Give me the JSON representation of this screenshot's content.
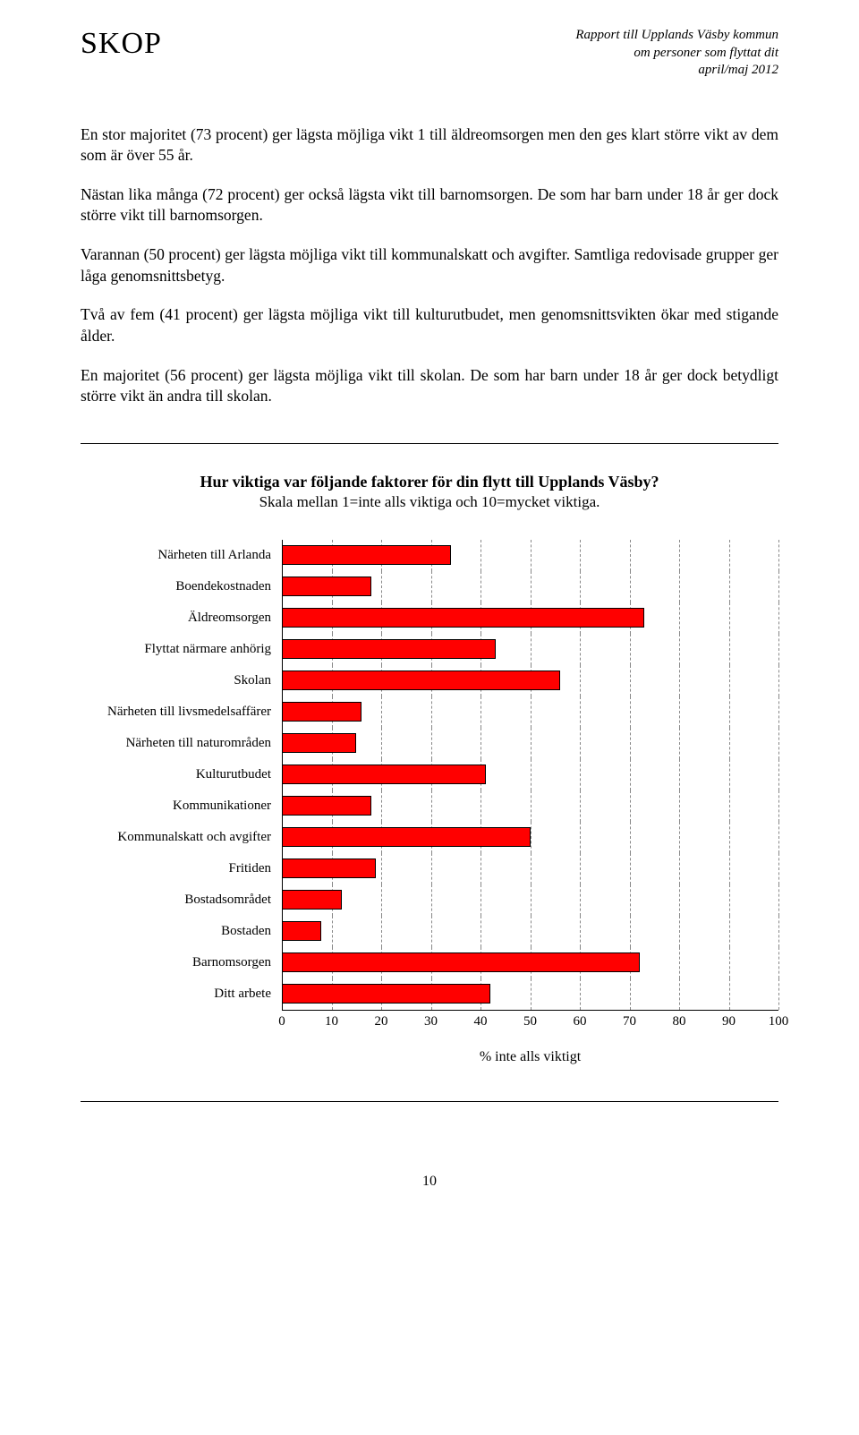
{
  "header": {
    "logo": "SKOP",
    "report_line1": "Rapport till Upplands Väsby kommun",
    "report_line2": "om  personer som flyttat dit",
    "report_line3": "april/maj 2012"
  },
  "paragraphs": {
    "p1": "En stor majoritet (73 procent) ger lägsta möjliga vikt 1 till äldreomsorgen men den ges klart större vikt av dem som är över 55 år.",
    "p2": "Nästan lika många (72 procent) ger också lägsta vikt till barnomsorgen. De som har barn under 18 år ger dock större vikt till barnomsorgen.",
    "p3": "Varannan (50 procent) ger lägsta möjliga vikt till kommunalskatt och avgifter. Samtliga redovisade grupper ger låga genomsnittsbetyg.",
    "p4": "Två av fem (41 procent) ger lägsta möjliga vikt till kulturutbudet, men genomsnittsvikten ökar med stigande ålder.",
    "p5": "En majoritet (56 procent) ger lägsta möjliga vikt till skolan. De som har barn under 18 år ger dock betydligt större vikt än andra till skolan."
  },
  "chart": {
    "type": "bar-horizontal",
    "title": "Hur viktiga var följande faktorer för din flytt till Upplands Väsby?",
    "subtitle": "Skala mellan 1=inte alls viktiga och 10=mycket viktiga.",
    "axis_label": "% inte alls viktigt",
    "xlim": [
      0,
      100
    ],
    "xtick_step": 10,
    "bar_color": "#ff0000",
    "bar_border": "#000000",
    "grid_color": "#888888",
    "background": "#ffffff",
    "label_fontsize": 15,
    "categories": [
      {
        "label": "Närheten till Arlanda",
        "value": 34
      },
      {
        "label": "Boendekostnaden",
        "value": 18
      },
      {
        "label": "Äldreomsorgen",
        "value": 73
      },
      {
        "label": "Flyttat närmare anhörig",
        "value": 43
      },
      {
        "label": "Skolan",
        "value": 56
      },
      {
        "label": "Närheten till livsmedelsaffärer",
        "value": 16
      },
      {
        "label": "Närheten till naturområden",
        "value": 15
      },
      {
        "label": "Kulturutbudet",
        "value": 41
      },
      {
        "label": "Kommunikationer",
        "value": 18
      },
      {
        "label": "Kommunalskatt och avgifter",
        "value": 50
      },
      {
        "label": "Fritiden",
        "value": 19
      },
      {
        "label": "Bostadsområdet",
        "value": 12
      },
      {
        "label": "Bostaden",
        "value": 8
      },
      {
        "label": "Barnomsorgen",
        "value": 72
      },
      {
        "label": "Ditt arbete",
        "value": 42
      }
    ]
  },
  "page_number": "10"
}
